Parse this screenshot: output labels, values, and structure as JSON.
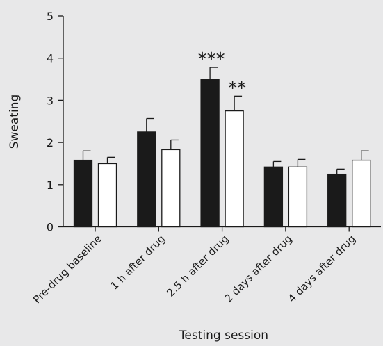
{
  "chart_data": {
    "type": "bar",
    "title": "",
    "xlabel": "Testing session",
    "ylabel": "Sweating",
    "ylim": [
      0,
      5
    ],
    "yticks": [
      0,
      1,
      2,
      3,
      4,
      5
    ],
    "grid": false,
    "legend": "none",
    "categories": [
      "Pre-drug baseline",
      "1 h after drug",
      "2.5 h after drug",
      "2 days after drug",
      "4 days after drug"
    ],
    "series": [
      {
        "color": "#1a1a1a",
        "values": [
          1.58,
          2.25,
          3.5,
          1.42,
          1.25
        ],
        "errors": [
          0.22,
          0.32,
          0.28,
          0.13,
          0.12
        ],
        "annotations": [
          "",
          "",
          "***",
          "",
          ""
        ]
      },
      {
        "color": "#ffffff",
        "values": [
          1.5,
          1.83,
          2.75,
          1.42,
          1.58
        ],
        "errors": [
          0.15,
          0.23,
          0.35,
          0.18,
          0.22
        ],
        "annotations": [
          "",
          "",
          "**",
          "",
          ""
        ]
      }
    ]
  }
}
